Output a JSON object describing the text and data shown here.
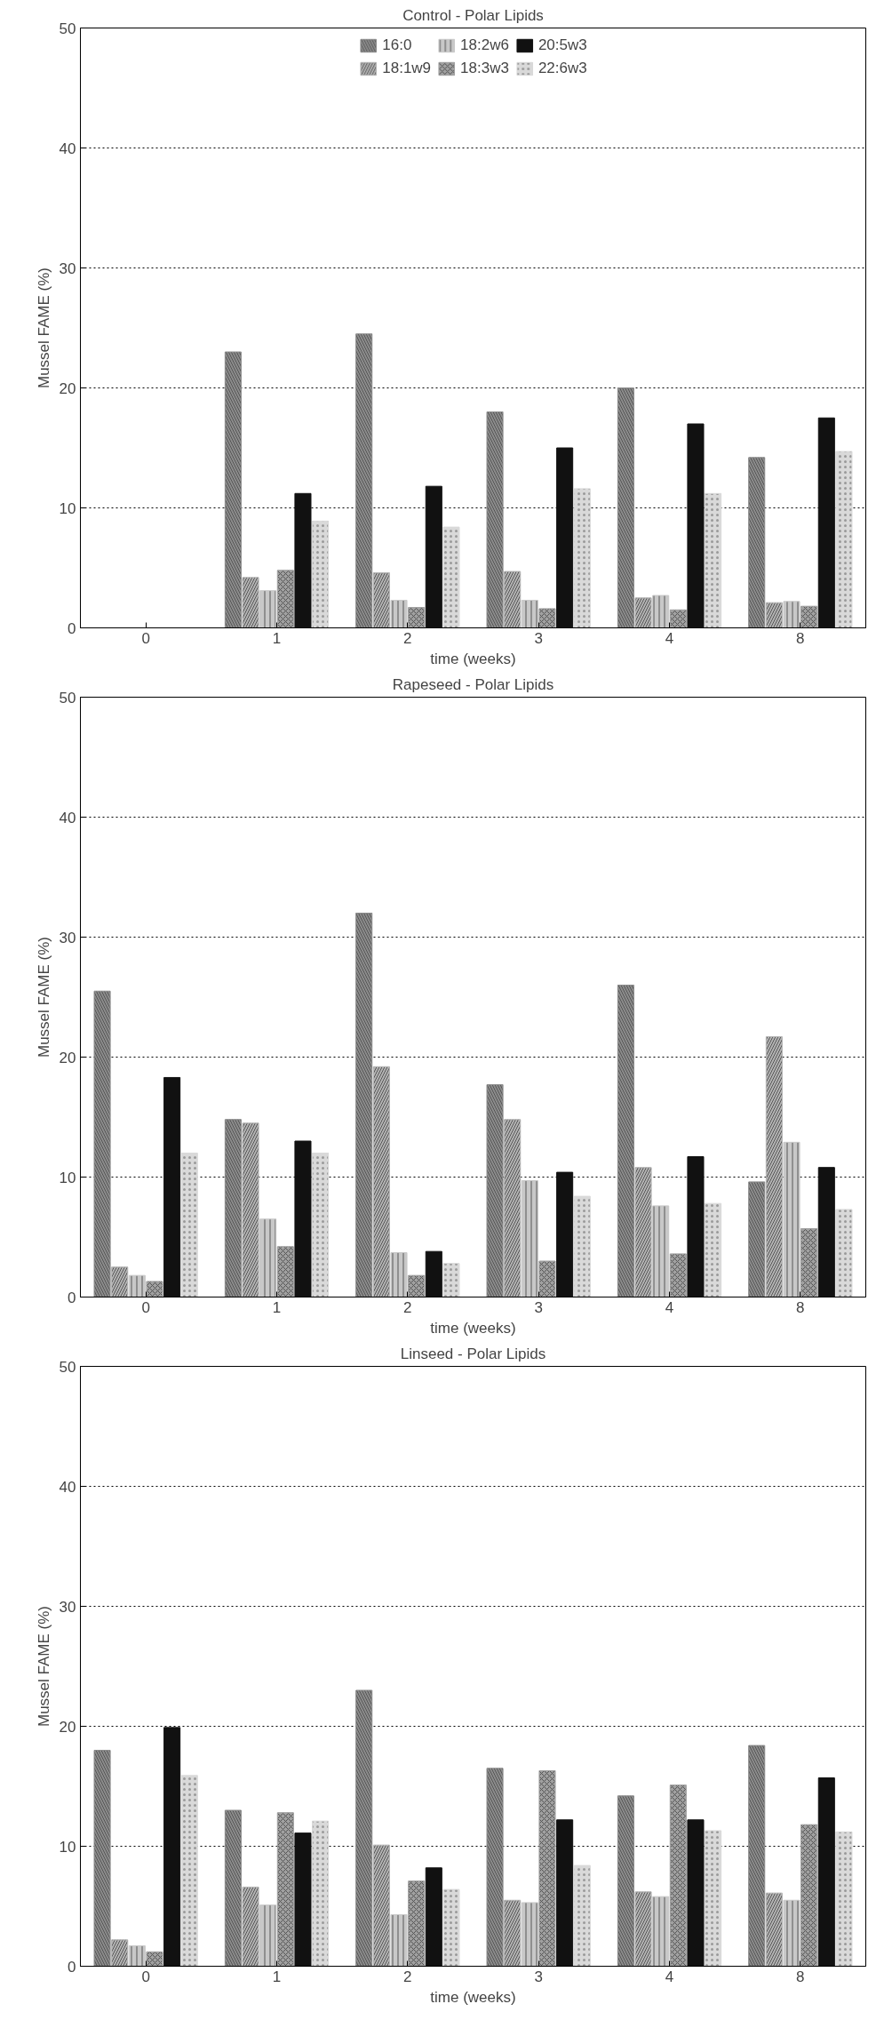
{
  "chart_data": [
    {
      "type": "bar",
      "title": "Control - Polar Lipids",
      "xlabel": "time (weeks)",
      "ylabel": "Mussel FAME (%)",
      "categories": [
        "0",
        "1",
        "2",
        "3",
        "4",
        "8"
      ],
      "ylim": [
        0,
        50
      ],
      "yticks": [
        0,
        10,
        20,
        30,
        40,
        50
      ],
      "grid": "y",
      "legend": "top",
      "series": [
        {
          "name": "16:0",
          "color": "#8c8c8c",
          "values": [
            null,
            23,
            24.5,
            18,
            20,
            14.2
          ]
        },
        {
          "name": "18:1w9",
          "color": "#b4b4b4",
          "values": [
            null,
            4.2,
            4.6,
            4.7,
            2.5,
            2.1
          ]
        },
        {
          "name": "18:2w6",
          "color": "#c8c8c8",
          "values": [
            null,
            3.1,
            2.3,
            2.3,
            2.7,
            2.2
          ]
        },
        {
          "name": "18:3w3",
          "color": "#a0a0a0",
          "values": [
            null,
            4.8,
            1.7,
            1.6,
            1.5,
            1.8
          ]
        },
        {
          "name": "20:5w3",
          "color": "#111111",
          "values": [
            null,
            11.2,
            11.8,
            15,
            17,
            17.5
          ]
        },
        {
          "name": "22:6w3",
          "color": "#d9d9d9",
          "values": [
            null,
            8.9,
            8.4,
            11.6,
            11.2,
            14.7
          ]
        }
      ]
    },
    {
      "type": "bar",
      "title": "Rapeseed - Polar Lipids",
      "xlabel": "time (weeks)",
      "ylabel": "Mussel FAME (%)",
      "categories": [
        "0",
        "1",
        "2",
        "3",
        "4",
        "8"
      ],
      "ylim": [
        0,
        50
      ],
      "yticks": [
        0,
        10,
        20,
        30,
        40,
        50
      ],
      "grid": "y",
      "series": [
        {
          "color": "#8c8c8c",
          "values": [
            25.5,
            14.8,
            32,
            17.7,
            26,
            9.6
          ]
        },
        {
          "color": "#b4b4b4",
          "values": [
            2.5,
            14.5,
            19.2,
            14.8,
            10.8,
            21.7
          ]
        },
        {
          "color": "#c8c8c8",
          "values": [
            1.8,
            6.5,
            3.7,
            9.7,
            7.6,
            12.9
          ]
        },
        {
          "color": "#a0a0a0",
          "values": [
            1.3,
            4.2,
            1.8,
            3,
            3.6,
            5.7
          ]
        },
        {
          "color": "#111111",
          "values": [
            18.3,
            13,
            3.8,
            10.4,
            11.7,
            10.8
          ]
        },
        {
          "color": "#d9d9d9",
          "values": [
            12,
            12,
            2.8,
            8.4,
            7.8,
            7.3
          ]
        }
      ]
    },
    {
      "type": "bar",
      "title": "Linseed - Polar Lipids",
      "xlabel": "time (weeks)",
      "ylabel": "Mussel FAME (%)",
      "categories": [
        "0",
        "1",
        "2",
        "3",
        "4",
        "8"
      ],
      "ylim": [
        0,
        50
      ],
      "yticks": [
        0,
        10,
        20,
        30,
        40,
        50
      ],
      "grid": "y",
      "series": [
        {
          "color": "#8c8c8c",
          "values": [
            18,
            13,
            23,
            16.5,
            14.2,
            18.4
          ]
        },
        {
          "color": "#b4b4b4",
          "values": [
            2.2,
            6.6,
            10.1,
            5.5,
            6.2,
            6.1
          ]
        },
        {
          "color": "#c8c8c8",
          "values": [
            1.7,
            5.1,
            4.3,
            5.3,
            5.8,
            5.5
          ]
        },
        {
          "color": "#a0a0a0",
          "values": [
            1.2,
            12.8,
            7.1,
            16.3,
            15.1,
            11.8
          ]
        },
        {
          "color": "#111111",
          "values": [
            19.9,
            11.1,
            8.2,
            12.2,
            12.2,
            15.7
          ]
        },
        {
          "color": "#d9d9d9",
          "values": [
            15.9,
            12.1,
            6.4,
            8.4,
            11.3,
            11.2
          ]
        }
      ]
    }
  ]
}
